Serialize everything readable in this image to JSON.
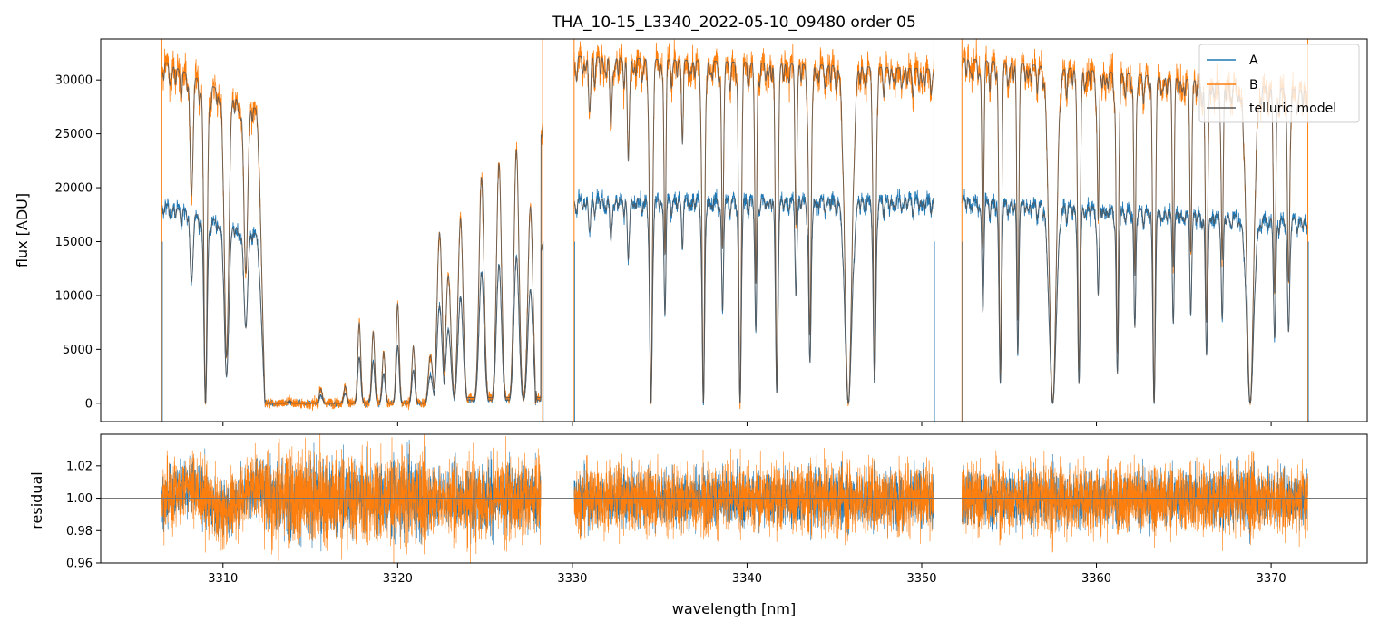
{
  "chart_data": {
    "type": "line",
    "title": "THA_10-15_L3340_2022-05-10_09480  order 05",
    "xlabel": "wavelength [nm]",
    "xlim": [
      3303,
      3375.5
    ],
    "x_ticks": [
      3310,
      3320,
      3330,
      3340,
      3350,
      3360,
      3370
    ],
    "x_tick_labels": [
      "3310",
      "3320",
      "3330",
      "3340",
      "3350",
      "3360",
      "3370"
    ],
    "legend_position": "top-right",
    "colors": {
      "A": "#1f77b4",
      "B": "#ff7f0e",
      "model": "#555555",
      "axes": "#000000",
      "reference": "#777777"
    },
    "segments": [
      [
        3306.5,
        3328.3
      ],
      [
        3330.1,
        3350.7
      ],
      [
        3352.3,
        3372.1
      ]
    ],
    "flux_panel": {
      "ylabel": "flux [ADU]",
      "ylim": [
        -1700,
        33800
      ],
      "y_ticks": [
        0,
        5000,
        10000,
        15000,
        20000,
        25000,
        30000
      ],
      "y_tick_labels": [
        "0",
        "5000",
        "10000",
        "15000",
        "20000",
        "25000",
        "30000"
      ],
      "series": [
        {
          "name": "A",
          "continuum": [
            [
              3306.5,
              18600
            ],
            [
              3312.3,
              15500
            ],
            [
              3328.3,
              15000
            ],
            [
              3330.1,
              19000
            ],
            [
              3350.7,
              19000
            ],
            [
              3352.3,
              19000
            ],
            [
              3372.1,
              17000
            ]
          ]
        },
        {
          "name": "B",
          "continuum": [
            [
              3306.5,
              31800
            ],
            [
              3312.3,
              27000
            ],
            [
              3328.3,
              26000
            ],
            [
              3330.1,
              32200
            ],
            [
              3350.7,
              31000
            ],
            [
              3352.3,
              32000
            ],
            [
              3372.1,
              29000
            ]
          ]
        },
        {
          "name": "telluric model"
        }
      ],
      "absorption_lines": [
        {
          "x": 3308.2,
          "depth": 0.35,
          "width": 0.22
        },
        {
          "x": 3309.0,
          "depth": 1.0,
          "width": 0.25
        },
        {
          "x": 3310.2,
          "depth": 0.85,
          "width": 0.35
        },
        {
          "x": 3311.3,
          "depth": 0.55,
          "width": 0.3
        },
        {
          "x": 3323.0,
          "depth": 0.55,
          "width": 0.25
        },
        {
          "x": 3324.2,
          "depth": 0.65,
          "width": 0.25
        },
        {
          "x": 3325.2,
          "depth": 0.6,
          "width": 0.25
        },
        {
          "x": 3326.3,
          "depth": 0.75,
          "width": 0.25
        },
        {
          "x": 3327.2,
          "depth": 0.7,
          "width": 0.2
        },
        {
          "x": 3327.9,
          "depth": 1.0,
          "width": 0.2
        },
        {
          "x": 3331.0,
          "depth": 0.15,
          "width": 0.15
        },
        {
          "x": 3332.2,
          "depth": 0.2,
          "width": 0.15
        },
        {
          "x": 3333.2,
          "depth": 0.3,
          "width": 0.15
        },
        {
          "x": 3334.5,
          "depth": 1.0,
          "width": 0.22
        },
        {
          "x": 3335.3,
          "depth": 0.55,
          "width": 0.15
        },
        {
          "x": 3336.3,
          "depth": 0.2,
          "width": 0.12
        },
        {
          "x": 3337.5,
          "depth": 1.0,
          "width": 0.2
        },
        {
          "x": 3338.6,
          "depth": 0.55,
          "width": 0.15
        },
        {
          "x": 3339.6,
          "depth": 1.0,
          "width": 0.2
        },
        {
          "x": 3340.5,
          "depth": 0.65,
          "width": 0.15
        },
        {
          "x": 3341.7,
          "depth": 0.95,
          "width": 0.2
        },
        {
          "x": 3342.8,
          "depth": 0.45,
          "width": 0.15
        },
        {
          "x": 3343.6,
          "depth": 0.8,
          "width": 0.2
        },
        {
          "x": 3345.8,
          "depth": 1.0,
          "width": 0.55
        },
        {
          "x": 3347.3,
          "depth": 0.9,
          "width": 0.22
        },
        {
          "x": 3353.5,
          "depth": 0.55,
          "width": 0.15
        },
        {
          "x": 3354.5,
          "depth": 0.9,
          "width": 0.2
        },
        {
          "x": 3355.5,
          "depth": 0.75,
          "width": 0.15
        },
        {
          "x": 3357.5,
          "depth": 1.0,
          "width": 0.55
        },
        {
          "x": 3359.0,
          "depth": 0.9,
          "width": 0.2
        },
        {
          "x": 3360.1,
          "depth": 0.45,
          "width": 0.15
        },
        {
          "x": 3361.2,
          "depth": 0.85,
          "width": 0.18
        },
        {
          "x": 3362.2,
          "depth": 0.6,
          "width": 0.15
        },
        {
          "x": 3363.3,
          "depth": 1.0,
          "width": 0.2
        },
        {
          "x": 3364.4,
          "depth": 0.55,
          "width": 0.15
        },
        {
          "x": 3365.4,
          "depth": 0.5,
          "width": 0.15
        },
        {
          "x": 3366.3,
          "depth": 0.75,
          "width": 0.18
        },
        {
          "x": 3367.2,
          "depth": 0.55,
          "width": 0.15
        },
        {
          "x": 3368.8,
          "depth": 1.0,
          "width": 0.55
        },
        {
          "x": 3370.2,
          "depth": 0.65,
          "width": 0.18
        },
        {
          "x": 3371.0,
          "depth": 0.6,
          "width": 0.18
        }
      ],
      "saturated_band": [
        3312.4,
        3321.6
      ],
      "band_emission_peaks": [
        {
          "x": 3313.8,
          "level": 0.01
        },
        {
          "x": 3315.6,
          "level": 0.05
        },
        {
          "x": 3317.0,
          "level": 0.06
        },
        {
          "x": 3317.8,
          "level": 0.28
        },
        {
          "x": 3318.6,
          "level": 0.25
        },
        {
          "x": 3319.2,
          "level": 0.18
        },
        {
          "x": 3320.0,
          "level": 0.35
        },
        {
          "x": 3320.9,
          "level": 0.2
        }
      ],
      "recovery_peaks": [
        {
          "x": 3321.8,
          "level": 0.35
        },
        {
          "x": 3322.4,
          "level": 0.6
        },
        {
          "x": 3322.9,
          "level": 0.45
        },
        {
          "x": 3323.6,
          "level": 0.65
        },
        {
          "x": 3324.8,
          "level": 0.8
        },
        {
          "x": 3325.8,
          "level": 0.85
        },
        {
          "x": 3326.8,
          "level": 0.9
        },
        {
          "x": 3327.6,
          "level": 0.7
        }
      ]
    },
    "residual_panel": {
      "ylabel": "residual",
      "ylim": [
        0.96,
        1.0395
      ],
      "y_ticks": [
        0.96,
        0.98,
        1.0,
        1.02
      ],
      "y_tick_labels": [
        "0.96",
        "0.98",
        "1.00",
        "1.02"
      ],
      "reference_line": 1.0,
      "noise_sigma": 0.011,
      "segments": [
        [
          3306.5,
          3328.2
        ],
        [
          3330.1,
          3350.7
        ],
        [
          3352.3,
          3372.1
        ]
      ]
    }
  }
}
